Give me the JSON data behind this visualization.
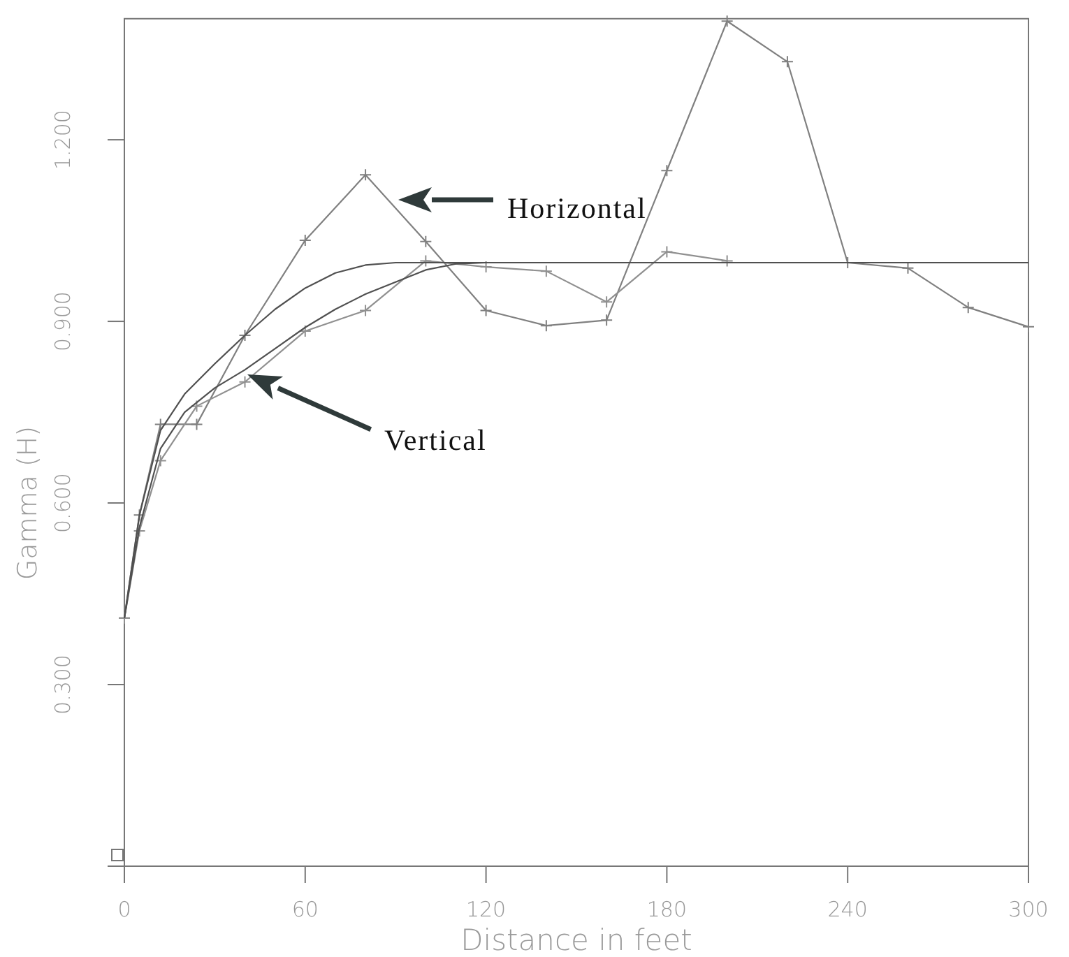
{
  "chart_data": {
    "type": "line",
    "xlabel": "Distance in feet",
    "ylabel": "Gamma (H)",
    "xlim": [
      0,
      300
    ],
    "xticks": [
      0,
      60,
      120,
      180,
      240,
      300
    ],
    "ylim": [
      0,
      1.4
    ],
    "yticks": [
      {
        "value": 0.3,
        "label": "0.300"
      },
      {
        "value": 0.6,
        "label": "0.600"
      },
      {
        "value": 0.9,
        "label": "0.900"
      },
      {
        "value": 1.2,
        "label": "1.200"
      }
    ],
    "grid": false,
    "line_style": "solid",
    "series": [
      {
        "color": "#808080",
        "marker": "cross",
        "x": [
          0,
          5,
          12,
          24,
          40,
          60,
          80,
          100,
          120,
          140,
          160,
          180,
          200,
          220,
          240,
          260,
          280,
          300
        ],
        "values": [
          0.41,
          0.58,
          0.73,
          0.73,
          0.877,
          1.034,
          1.142,
          1.032,
          0.918,
          0.893,
          0.902,
          1.149,
          1.396,
          1.329,
          0.997,
          0.988,
          0.923,
          0.891
        ]
      },
      {
        "color": "#909090",
        "marker": "cross",
        "x": [
          0,
          5,
          12,
          24,
          40,
          60,
          80,
          100,
          120,
          140,
          160,
          180,
          200
        ],
        "values": [
          0.41,
          0.554,
          0.67,
          0.76,
          0.8,
          0.884,
          0.918,
          1.0,
          0.99,
          0.983,
          0.932,
          1.015,
          1.0
        ]
      },
      {
        "color": "#505050",
        "marker": "none",
        "x": [
          0,
          5,
          12,
          20,
          30,
          40,
          50,
          60,
          70,
          80,
          90,
          300
        ],
        "values": [
          0.41,
          0.58,
          0.72,
          0.78,
          0.83,
          0.877,
          0.92,
          0.955,
          0.98,
          0.993,
          0.997,
          0.997
        ]
      },
      {
        "color": "#505050",
        "marker": "none",
        "x": [
          0,
          5,
          12,
          20,
          30,
          40,
          50,
          60,
          70,
          80,
          90,
          100,
          110,
          120
        ],
        "values": [
          0.41,
          0.56,
          0.69,
          0.75,
          0.79,
          0.82,
          0.855,
          0.89,
          0.92,
          0.945,
          0.965,
          0.985,
          0.995,
          0.997
        ]
      }
    ],
    "annotations": [
      "Horizontal",
      "Vertical"
    ]
  }
}
